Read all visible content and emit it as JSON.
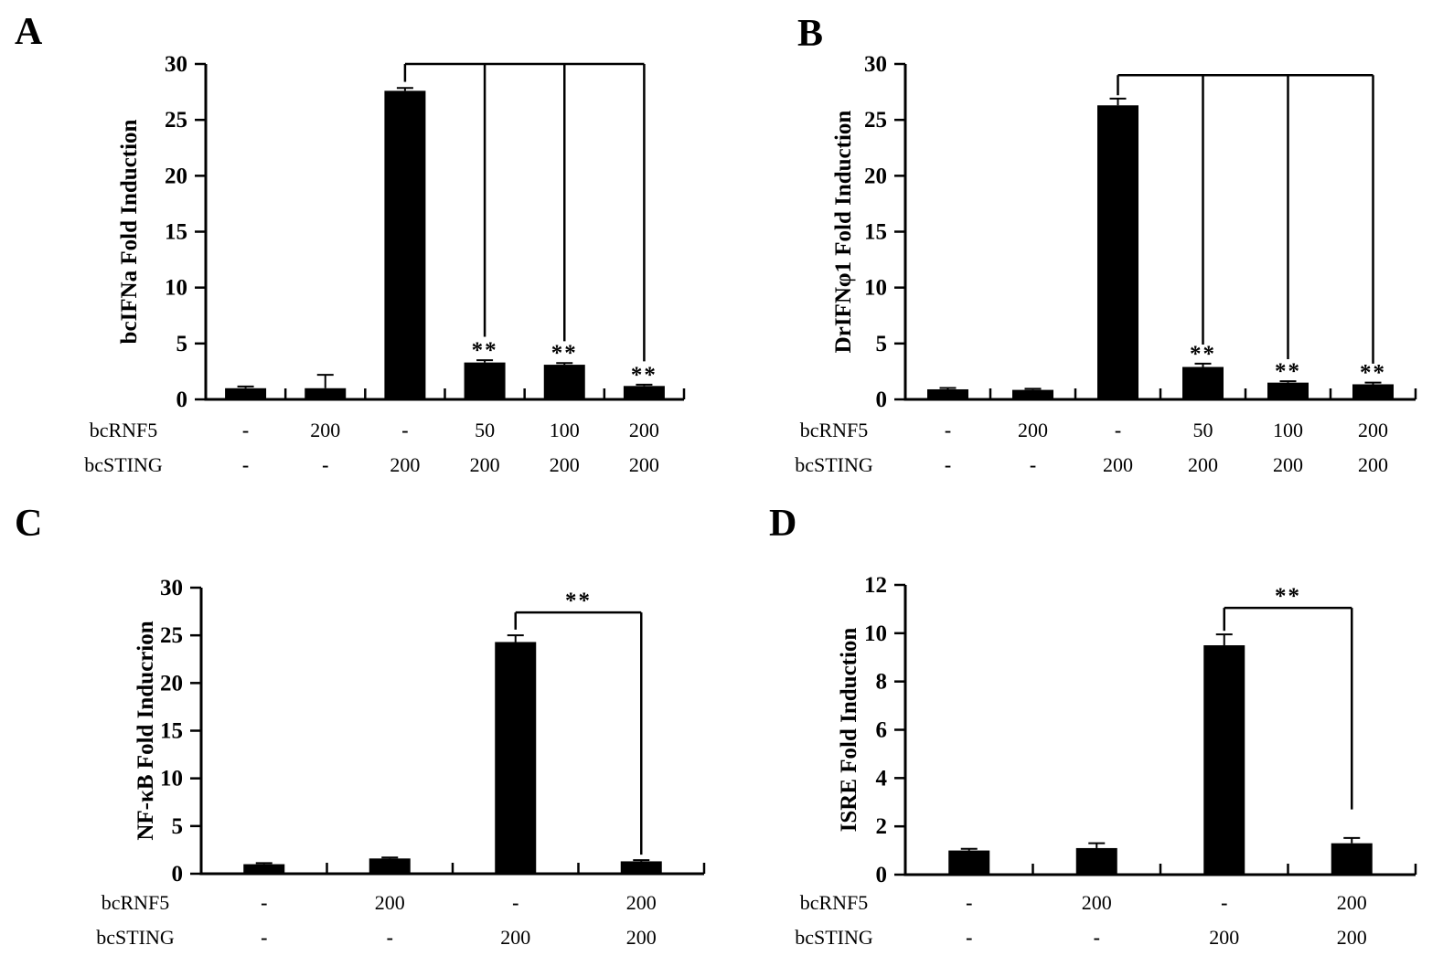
{
  "figure": {
    "panels": [
      "A",
      "B",
      "C",
      "D"
    ]
  },
  "chart_data": [
    {
      "panel": "A",
      "type": "bar",
      "ylabel": "bcIFNa Fold Induction",
      "ylim": [
        0,
        30
      ],
      "yticks": [
        0,
        5,
        10,
        15,
        20,
        25,
        30
      ],
      "bar_color": "#000000",
      "grid": false,
      "x_rows": [
        {
          "label": "bcRNF5",
          "values": [
            "-",
            "200",
            "-",
            "50",
            "100",
            "200"
          ]
        },
        {
          "label": "bcSTING",
          "values": [
            "-",
            "-",
            "200",
            "200",
            "200",
            "200"
          ]
        }
      ],
      "values": [
        1.0,
        1.0,
        27.6,
        3.3,
        3.1,
        1.2
      ],
      "errors": [
        0.15,
        1.2,
        0.25,
        0.2,
        0.15,
        0.12
      ],
      "sig": [
        null,
        null,
        null,
        "**",
        "**",
        "**"
      ],
      "bracket": {
        "style": "multi-drop",
        "y": 30,
        "source_bar": 2,
        "source_drop_to": 28.4,
        "drops": [
          {
            "bar": 3,
            "to": 5.6
          },
          {
            "bar": 4,
            "to": 5.2
          },
          {
            "bar": 5,
            "to": 3.4
          }
        ]
      }
    },
    {
      "panel": "B",
      "type": "bar",
      "ylabel": "DrIFNφ1 Fold Induction",
      "ylim": [
        0,
        30
      ],
      "yticks": [
        0,
        5,
        10,
        15,
        20,
        25,
        30
      ],
      "bar_color": "#000000",
      "grid": false,
      "x_rows": [
        {
          "label": "bcRNF5",
          "values": [
            "-",
            "200",
            "-",
            "50",
            "100",
            "200"
          ]
        },
        {
          "label": "bcSTING",
          "values": [
            "-",
            "-",
            "200",
            "200",
            "200",
            "200"
          ]
        }
      ],
      "values": [
        0.9,
        0.85,
        26.3,
        2.9,
        1.5,
        1.35
      ],
      "errors": [
        0.12,
        0.1,
        0.6,
        0.3,
        0.12,
        0.15
      ],
      "sig": [
        null,
        null,
        null,
        "**",
        "**",
        "**"
      ],
      "bracket": {
        "style": "multi-drop",
        "y": 29,
        "source_bar": 2,
        "source_drop_to": 27.2,
        "drops": [
          {
            "bar": 3,
            "to": 4.9
          },
          {
            "bar": 4,
            "to": 3.6
          },
          {
            "bar": 5,
            "to": 3.2
          }
        ]
      }
    },
    {
      "panel": "C",
      "type": "bar",
      "ylabel": "NF-κB Fold Inducrion",
      "ylim": [
        0,
        30
      ],
      "yticks": [
        0,
        5,
        10,
        15,
        20,
        25,
        30
      ],
      "bar_color": "#000000",
      "grid": false,
      "x_rows": [
        {
          "label": "bcRNF5",
          "values": [
            "-",
            "200",
            "-",
            "200"
          ]
        },
        {
          "label": "bcSTING",
          "values": [
            "-",
            "-",
            "200",
            "200"
          ]
        }
      ],
      "values": [
        1.0,
        1.6,
        24.3,
        1.3
      ],
      "errors": [
        0.12,
        0.1,
        0.7,
        0.12
      ],
      "sig": [
        null,
        null,
        null,
        null
      ],
      "bracket": {
        "style": "pair",
        "y": 27.4,
        "label": "**",
        "left_bar": 2,
        "left_drop_to": 25.6,
        "right_bar": 3,
        "right_drop_to": 2.0
      }
    },
    {
      "panel": "D",
      "type": "bar",
      "ylabel": "ISRE Fold Induction",
      "ylim": [
        0,
        12
      ],
      "yticks": [
        0,
        2,
        4,
        6,
        8,
        10,
        12
      ],
      "bar_color": "#000000",
      "grid": false,
      "x_rows": [
        {
          "label": "bcRNF5",
          "values": [
            "-",
            "200",
            "-",
            "200"
          ]
        },
        {
          "label": "bcSTING",
          "values": [
            "-",
            "-",
            "200",
            "200"
          ]
        }
      ],
      "values": [
        1.0,
        1.1,
        9.5,
        1.3
      ],
      "errors": [
        0.07,
        0.2,
        0.45,
        0.22
      ],
      "sig": [
        null,
        null,
        null,
        null
      ],
      "bracket": {
        "style": "pair",
        "y": 11.05,
        "label": "**",
        "left_bar": 2,
        "left_drop_to": 10.1,
        "right_bar": 3,
        "right_drop_to": 2.7
      }
    }
  ]
}
